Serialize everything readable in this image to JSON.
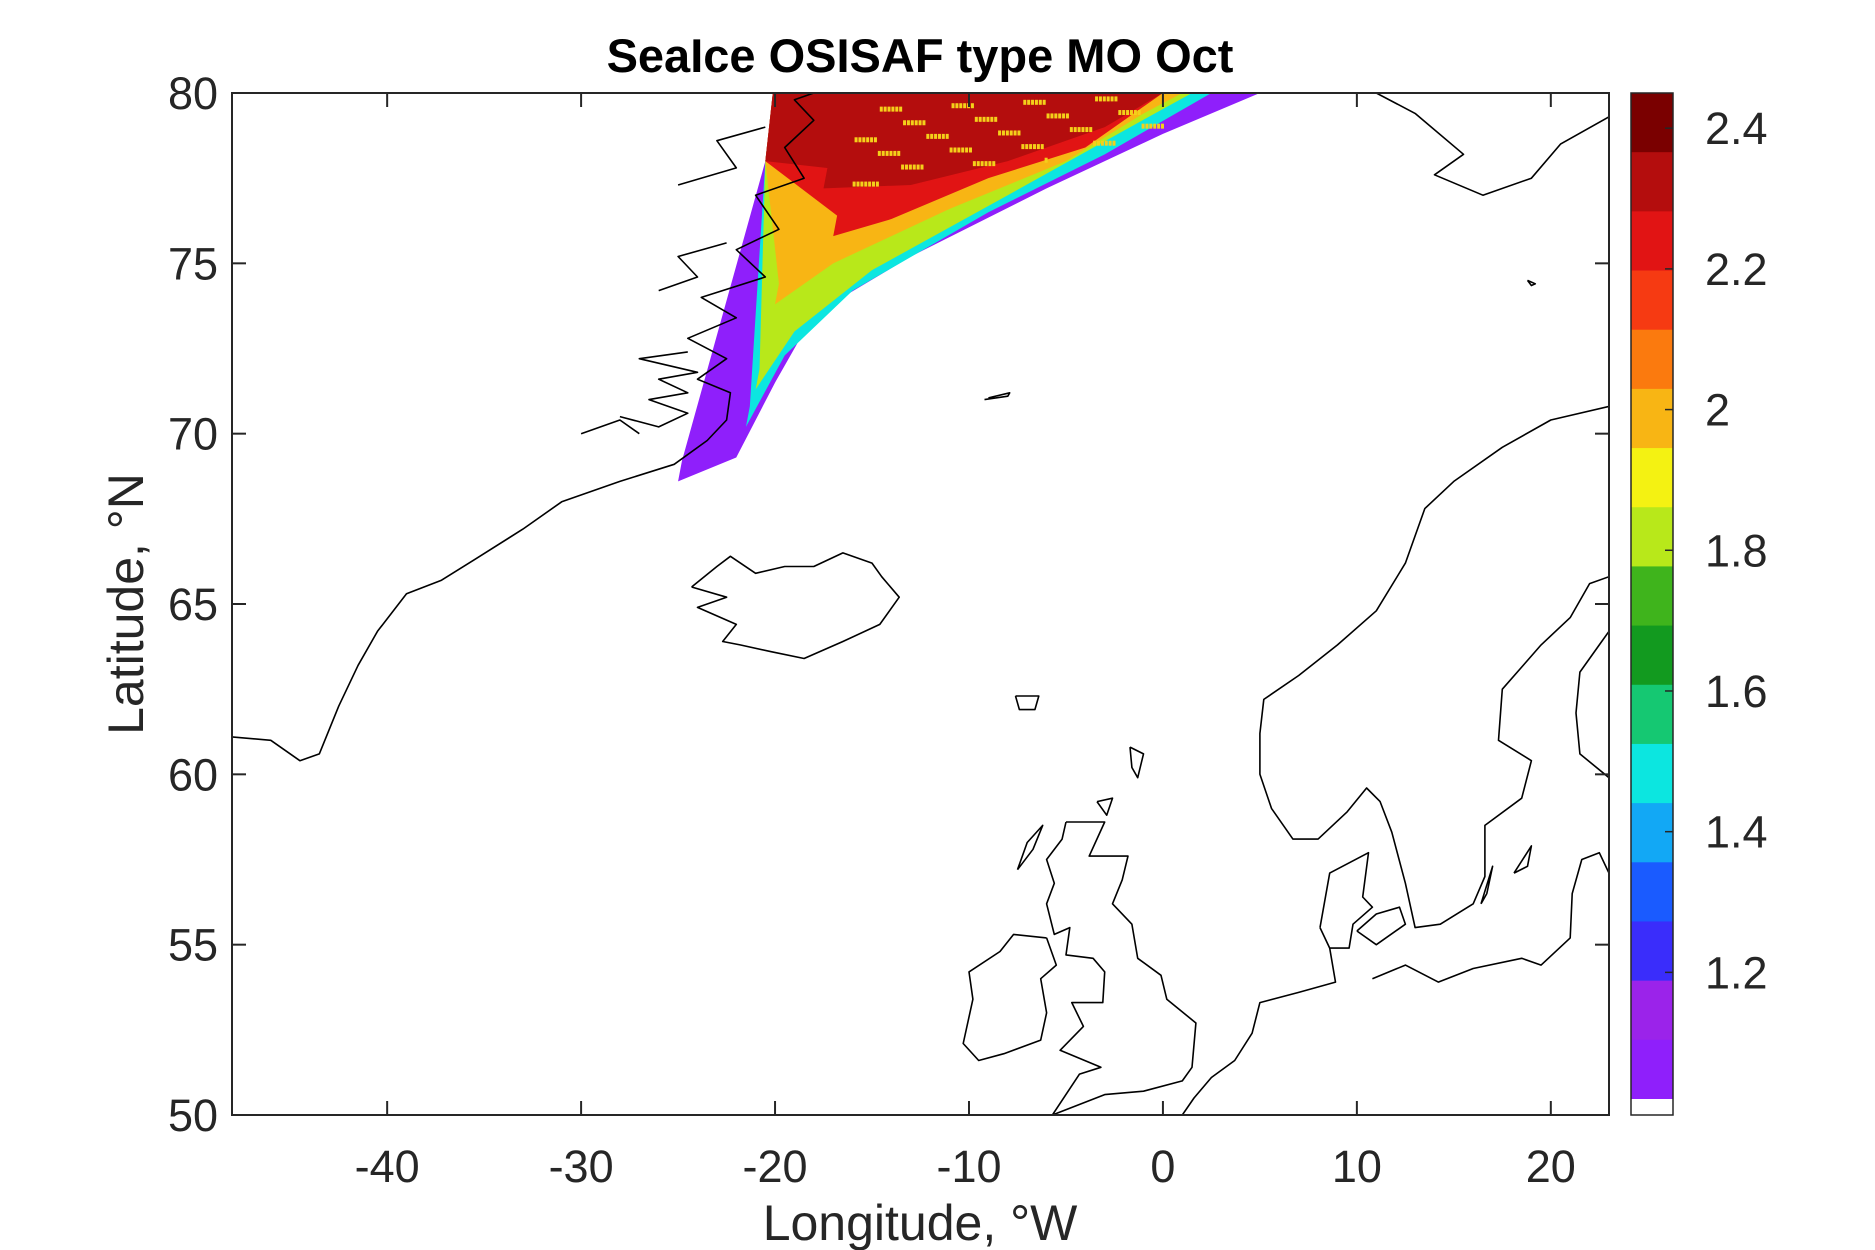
{
  "title": "SeaIce OSISAF type MO Oct",
  "xlabel": "Longitude, °W",
  "ylabel": "Latitude, °N",
  "map": {
    "lon_range": [
      -48,
      23
    ],
    "lat_range": [
      50,
      80
    ],
    "x_ticks": [
      -40,
      -30,
      -20,
      -10,
      0,
      10,
      20
    ],
    "y_ticks": [
      50,
      55,
      60,
      65,
      70,
      75,
      80
    ],
    "x_tick_labels": [
      "-40",
      "-30",
      "-20",
      "-10",
      "0",
      "10",
      "20"
    ],
    "y_tick_labels": [
      "50",
      "55",
      "60",
      "65",
      "70",
      "75",
      "80"
    ]
  },
  "colorbar": {
    "range": [
      1.02,
      2.45
    ],
    "ticks": [
      1.2,
      1.4,
      1.6,
      1.8,
      2.0,
      2.2,
      2.4
    ],
    "tick_labels": [
      "1.2",
      "1.4",
      "1.6",
      "1.8",
      "2",
      "2.2",
      "2.4"
    ],
    "colormap": "rainbow (purple-blue-cyan-green-yellow-orange-red-darkred)",
    "colors": [
      "#8f1ffb",
      "#9b23ea",
      "#3a2dfb",
      "#1a5bff",
      "#12a8f5",
      "#0ce6e0",
      "#15c872",
      "#129a1f",
      "#3fb41c",
      "#b8e81a",
      "#f4f212",
      "#f8b514",
      "#fb7a0e",
      "#f63a12",
      "#e11414",
      "#b40d0d",
      "#7a0000"
    ]
  },
  "chart_data": {
    "type": "heatmap",
    "title": "SeaIce OSISAF type MO Oct",
    "xlabel": "Longitude, °W",
    "ylabel": "Latitude, °N",
    "xlim": [
      -48,
      23
    ],
    "ylim": [
      50,
      80
    ],
    "clim": [
      1.02,
      2.45
    ],
    "description_of_field": "sea ice type values present only along the East Greenland margin north of ~68.5N",
    "ice_bands": [
      {
        "value": 1.1,
        "outer_edge": [
          [
            -25,
            68.6
          ],
          [
            -22,
            69.3
          ],
          [
            -20,
            71.5
          ],
          [
            -18,
            73.5
          ],
          [
            -13,
            75.2
          ],
          [
            -6,
            77.2
          ],
          [
            0,
            78.8
          ],
          [
            5,
            80
          ]
        ]
      },
      {
        "value": 1.5,
        "outer_edge": [
          [
            -21.5,
            70.2
          ],
          [
            -19.5,
            72.3
          ],
          [
            -16,
            74.2
          ],
          [
            -9,
            76.5
          ],
          [
            -3,
            78.2
          ],
          [
            2.5,
            80
          ]
        ]
      },
      {
        "value": 1.8,
        "outer_edge": [
          [
            -21,
            71.3
          ],
          [
            -19,
            73.0
          ],
          [
            -15,
            74.8
          ],
          [
            -8,
            77.0
          ],
          [
            -2,
            78.9
          ],
          [
            1.5,
            80
          ]
        ]
      },
      {
        "value": 2.0,
        "outer_edge": [
          [
            -20,
            73.8
          ],
          [
            -17,
            75.0
          ],
          [
            -11,
            76.6
          ],
          [
            -5,
            78.0
          ],
          [
            -1,
            79.4
          ],
          [
            1,
            80
          ]
        ]
      },
      {
        "value": 2.2,
        "outer_edge": [
          [
            -17,
            75.8
          ],
          [
            -14,
            76.3
          ],
          [
            -9,
            77.5
          ],
          [
            -4,
            78.4
          ],
          [
            0,
            80
          ]
        ]
      },
      {
        "value": 2.35,
        "outer_edge": [
          [
            -17.5,
            77.2
          ],
          [
            -13,
            77.3
          ],
          [
            -8,
            78.0
          ],
          [
            -3,
            79.0
          ],
          [
            0,
            80
          ]
        ]
      }
    ]
  }
}
